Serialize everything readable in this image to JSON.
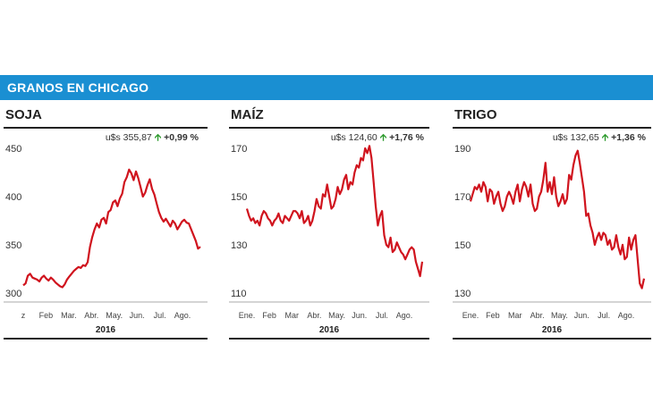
{
  "header": {
    "title": "GRANOS EN CHICAGO"
  },
  "colors": {
    "banner": "#1a8fd2",
    "line": "#d0141e",
    "up_arrow": "#2e9b2e"
  },
  "chart_data": [
    {
      "type": "line",
      "title": "SOJA",
      "price": "u$s 355,87",
      "change": "+0,99 %",
      "direction": "up",
      "year": "2016",
      "ylim": [
        300,
        450
      ],
      "yticks": [
        300,
        350,
        400,
        450
      ],
      "tick_labels": [
        "z",
        "Feb",
        "Mar.",
        "Abr.",
        "May.",
        "Jun.",
        "Jul.",
        "Ago."
      ],
      "grid": false,
      "series": [
        {
          "values": [
            308,
            310,
            318,
            320,
            316,
            315,
            314,
            312,
            316,
            318,
            315,
            313,
            316,
            314,
            311,
            309,
            307,
            306,
            309,
            314,
            317,
            320,
            323,
            325,
            327,
            326,
            329,
            328,
            332,
            348,
            358,
            366,
            372,
            368,
            376,
            378,
            372,
            384,
            386,
            394,
            396,
            390,
            398,
            403,
            415,
            420,
            428,
            424,
            417,
            426,
            419,
            410,
            400,
            404,
            412,
            418,
            408,
            402,
            393,
            384,
            378,
            374,
            377,
            373,
            369,
            375,
            372,
            366,
            370,
            374,
            376,
            373,
            372,
            366,
            360,
            354,
            346,
            348
          ]
        }
      ]
    },
    {
      "type": "line",
      "title": "MAÍZ",
      "price": "u$s 124,60",
      "change": "+1,76 %",
      "direction": "up",
      "year": "2016",
      "ylim": [
        110,
        170
      ],
      "yticks": [
        110,
        130,
        150,
        170
      ],
      "tick_labels": [
        "Ene.",
        "Feb",
        "Mar",
        "Abr.",
        "May.",
        "Jun.",
        "Jul.",
        "Ago."
      ],
      "grid": false,
      "series": [
        {
          "values": [
            145,
            142,
            140,
            141,
            139,
            140,
            138,
            142,
            144,
            143,
            141,
            140,
            138,
            140,
            141,
            143,
            140,
            139,
            142,
            141,
            140,
            142,
            144,
            144,
            143,
            141,
            144,
            139,
            140,
            142,
            138,
            140,
            144,
            149,
            146,
            145,
            151,
            150,
            155,
            150,
            145,
            146,
            149,
            154,
            151,
            153,
            157,
            159,
            153,
            156,
            155,
            160,
            163,
            162,
            166,
            165,
            170,
            168,
            171,
            166,
            156,
            146,
            138,
            142,
            144,
            134,
            130,
            129,
            133,
            127,
            128,
            131,
            129,
            127,
            126,
            124,
            126,
            128,
            129,
            128,
            123,
            120,
            117,
            123
          ]
        }
      ]
    },
    {
      "type": "line",
      "title": "TRIGO",
      "price": "u$s 132,65",
      "change": "+1,36 %",
      "direction": "up",
      "year": "2016",
      "ylim": [
        130,
        190
      ],
      "yticks": [
        130,
        150,
        170,
        190
      ],
      "tick_labels": [
        "Ene.",
        "Feb",
        "Mar",
        "Abr.",
        "May.",
        "Jun.",
        "Jul.",
        "Ago."
      ],
      "grid": false,
      "series": [
        {
          "values": [
            168,
            171,
            174,
            173,
            175,
            172,
            176,
            174,
            168,
            173,
            172,
            167,
            170,
            172,
            167,
            164,
            166,
            170,
            172,
            170,
            167,
            172,
            175,
            168,
            173,
            176,
            174,
            170,
            175,
            167,
            164,
            165,
            170,
            172,
            177,
            184,
            172,
            176,
            171,
            178,
            170,
            166,
            168,
            171,
            167,
            169,
            179,
            177,
            183,
            187,
            189,
            184,
            178,
            172,
            162,
            163,
            158,
            155,
            150,
            153,
            155,
            152,
            155,
            154,
            150,
            152,
            148,
            149,
            154,
            149,
            146,
            150,
            144,
            145,
            153,
            148,
            152,
            154,
            144,
            134,
            132,
            136
          ]
        }
      ]
    }
  ]
}
